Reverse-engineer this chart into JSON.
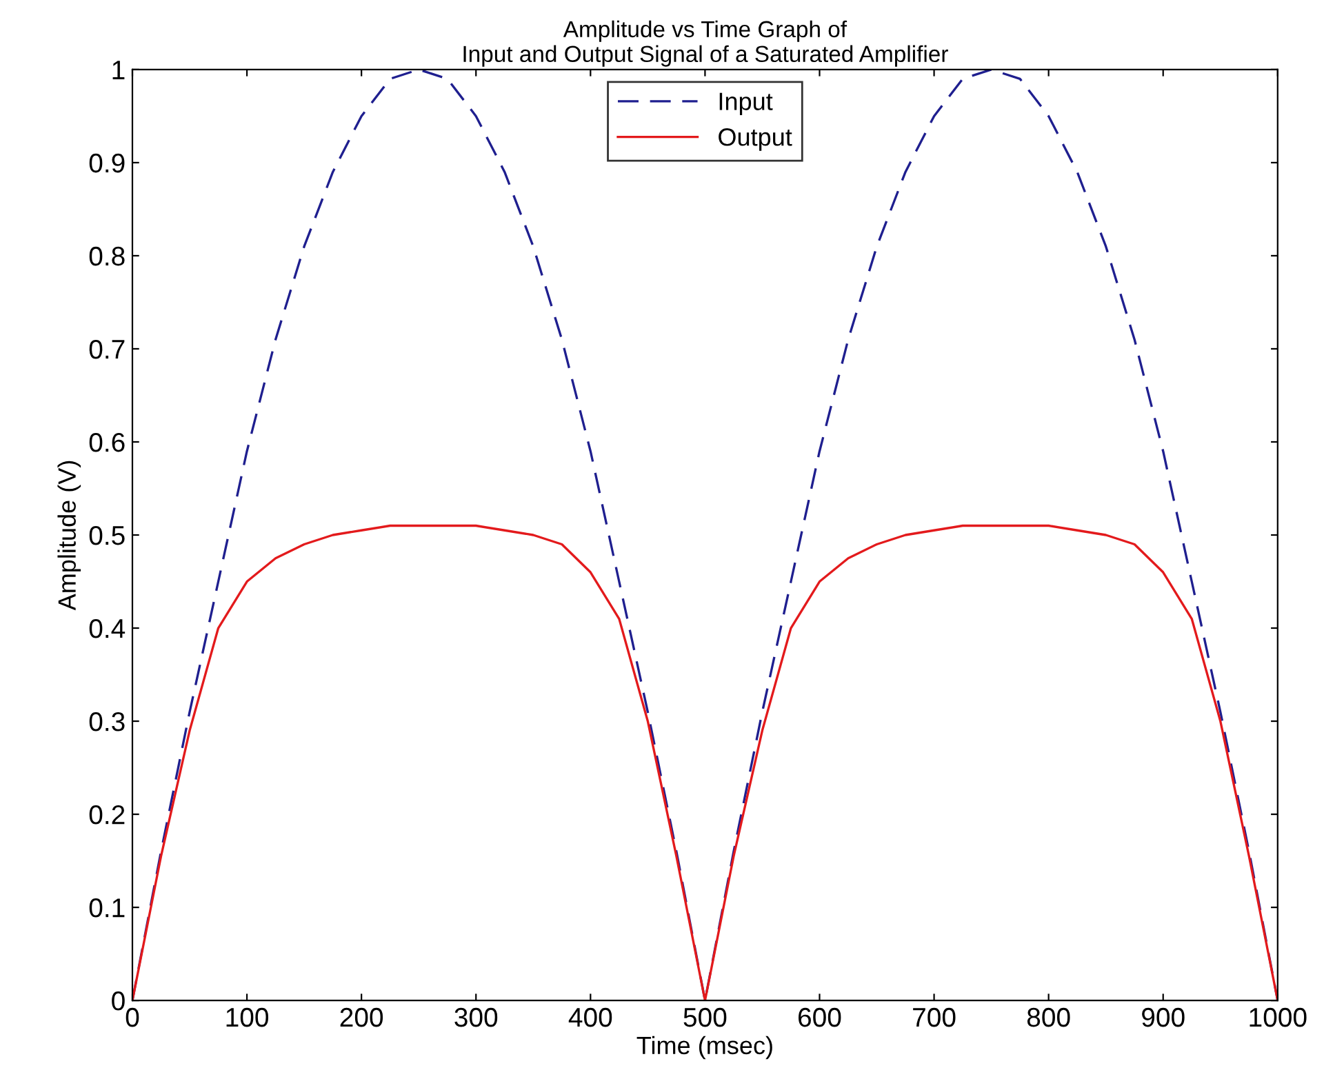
{
  "chart_data": {
    "type": "line",
    "title": "Amplitude vs Time Graph of\nInput and Output Signal of a Saturated Amplifier",
    "xlabel": "Time (msec)",
    "ylabel": "Amplitude (V)",
    "x": [
      0,
      25,
      50,
      75,
      100,
      125,
      150,
      175,
      200,
      225,
      250,
      275,
      300,
      325,
      350,
      375,
      400,
      425,
      450,
      475,
      500,
      525,
      550,
      575,
      600,
      625,
      650,
      675,
      700,
      725,
      750,
      775,
      800,
      825,
      850,
      875,
      900,
      925,
      950,
      975,
      1000
    ],
    "series": [
      {
        "name": "Input",
        "color": "#1f1f8f",
        "line_style": "dashed",
        "values": [
          0,
          0.16,
          0.31,
          0.45,
          0.59,
          0.71,
          0.81,
          0.89,
          0.95,
          0.99,
          1,
          0.99,
          0.95,
          0.89,
          0.81,
          0.71,
          0.59,
          0.45,
          0.31,
          0.16,
          0,
          0.16,
          0.31,
          0.45,
          0.59,
          0.71,
          0.81,
          0.89,
          0.95,
          0.99,
          1,
          0.99,
          0.95,
          0.89,
          0.81,
          0.71,
          0.59,
          0.45,
          0.31,
          0.16,
          0
        ]
      },
      {
        "name": "Output",
        "color": "#e31a1c",
        "line_style": "solid",
        "values": [
          0,
          0.155,
          0.29,
          0.4,
          0.45,
          0.475,
          0.49,
          0.5,
          0.505,
          0.51,
          0.51,
          0.51,
          0.51,
          0.505,
          0.5,
          0.49,
          0.46,
          0.41,
          0.3,
          0.155,
          0,
          0.155,
          0.29,
          0.4,
          0.45,
          0.475,
          0.49,
          0.5,
          0.505,
          0.51,
          0.51,
          0.51,
          0.51,
          0.505,
          0.5,
          0.49,
          0.46,
          0.41,
          0.3,
          0.155,
          0
        ]
      }
    ],
    "xlim": [
      0,
      1000
    ],
    "ylim": [
      0,
      1
    ],
    "xticks": [
      0,
      100,
      200,
      300,
      400,
      500,
      600,
      700,
      800,
      900,
      1000
    ],
    "yticks": [
      0,
      0.1,
      0.2,
      0.3,
      0.4,
      0.5,
      0.6,
      0.7,
      0.8,
      0.9,
      1
    ],
    "legend": "top"
  }
}
